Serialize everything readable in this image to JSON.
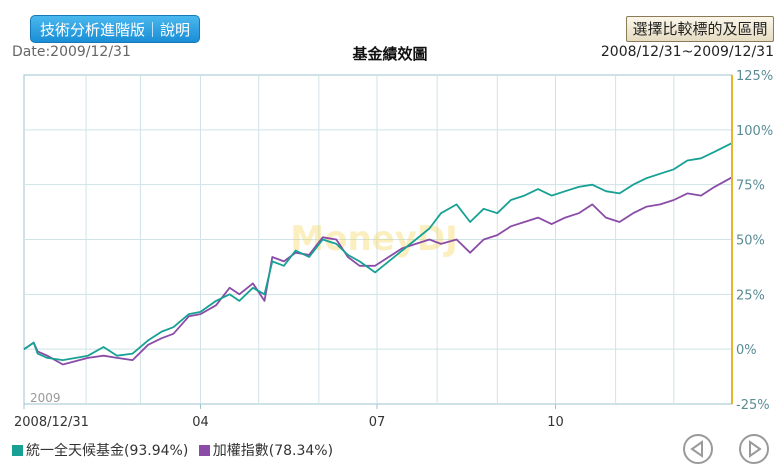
{
  "header": {
    "tech_button": "技術分析進階版｜說明",
    "compare_button": "選擇比較標的及區間",
    "date_label": "Date:2009/12/31",
    "title": "基金績效圖",
    "range": "2008/12/31~2009/12/31"
  },
  "watermark": "MoneyDJ",
  "year_label": "2009",
  "legend": [
    {
      "label": "統一全天候基金(93.94%)",
      "color": "#17a194"
    },
    {
      "label": "加權指數(78.34%)",
      "color": "#8a4ca6"
    }
  ],
  "nav": {
    "prev_icon": "prev-circle-icon",
    "next_icon": "next-circle-icon"
  },
  "chart_data": {
    "type": "line",
    "title": "基金績效圖",
    "x_tick_labels": [
      "2008/12/31",
      "04",
      "07",
      "10"
    ],
    "y_tick_labels": [
      "125%",
      "100%",
      "75%",
      "50%",
      "25%",
      "0%",
      "-25%"
    ],
    "y_axis_side": "right",
    "ylim": [
      -25,
      125
    ],
    "x_domain": [
      "2008-12-31",
      "2009-12-31"
    ],
    "grid": true,
    "legend_position": "bottom-left",
    "series": [
      {
        "name": "統一全天候基金(93.94%)",
        "color": "#17a194",
        "points": [
          [
            "2008-12-31",
            0
          ],
          [
            "2009-01-05",
            3
          ],
          [
            "2009-01-07",
            -2
          ],
          [
            "2009-01-12",
            -4
          ],
          [
            "2009-01-20",
            -5
          ],
          [
            "2009-02-02",
            -3
          ],
          [
            "2009-02-10",
            1
          ],
          [
            "2009-02-17",
            -3
          ],
          [
            "2009-02-25",
            -2
          ],
          [
            "2009-03-05",
            4
          ],
          [
            "2009-03-12",
            8
          ],
          [
            "2009-03-18",
            10
          ],
          [
            "2009-03-26",
            16
          ],
          [
            "2009-04-01",
            17
          ],
          [
            "2009-04-09",
            22
          ],
          [
            "2009-04-16",
            25
          ],
          [
            "2009-04-21",
            22
          ],
          [
            "2009-04-28",
            28
          ],
          [
            "2009-05-04",
            25
          ],
          [
            "2009-05-08",
            40
          ],
          [
            "2009-05-14",
            38
          ],
          [
            "2009-05-20",
            45
          ],
          [
            "2009-05-27",
            42
          ],
          [
            "2009-06-03",
            50
          ],
          [
            "2009-06-10",
            48
          ],
          [
            "2009-06-16",
            43
          ],
          [
            "2009-06-22",
            40
          ],
          [
            "2009-06-30",
            35
          ],
          [
            "2009-07-07",
            40
          ],
          [
            "2009-07-14",
            45
          ],
          [
            "2009-07-21",
            50
          ],
          [
            "2009-07-28",
            55
          ],
          [
            "2009-08-03",
            62
          ],
          [
            "2009-08-11",
            66
          ],
          [
            "2009-08-18",
            58
          ],
          [
            "2009-08-25",
            64
          ],
          [
            "2009-09-01",
            62
          ],
          [
            "2009-09-08",
            68
          ],
          [
            "2009-09-15",
            70
          ],
          [
            "2009-09-22",
            73
          ],
          [
            "2009-09-29",
            70
          ],
          [
            "2009-10-06",
            72
          ],
          [
            "2009-10-13",
            74
          ],
          [
            "2009-10-20",
            75
          ],
          [
            "2009-10-27",
            72
          ],
          [
            "2009-11-03",
            71
          ],
          [
            "2009-11-10",
            75
          ],
          [
            "2009-11-17",
            78
          ],
          [
            "2009-11-24",
            80
          ],
          [
            "2009-12-01",
            82
          ],
          [
            "2009-12-08",
            86
          ],
          [
            "2009-12-15",
            87
          ],
          [
            "2009-12-22",
            90
          ],
          [
            "2009-12-31",
            93.94
          ]
        ]
      },
      {
        "name": "加權指數(78.34%)",
        "color": "#8a4ca6",
        "points": [
          [
            "2008-12-31",
            0
          ],
          [
            "2009-01-05",
            3
          ],
          [
            "2009-01-07",
            -1
          ],
          [
            "2009-01-12",
            -3
          ],
          [
            "2009-01-20",
            -7
          ],
          [
            "2009-02-02",
            -4
          ],
          [
            "2009-02-10",
            -3
          ],
          [
            "2009-02-17",
            -4
          ],
          [
            "2009-02-25",
            -5
          ],
          [
            "2009-03-05",
            2
          ],
          [
            "2009-03-12",
            5
          ],
          [
            "2009-03-18",
            7
          ],
          [
            "2009-03-26",
            15
          ],
          [
            "2009-04-01",
            16
          ],
          [
            "2009-04-09",
            20
          ],
          [
            "2009-04-16",
            28
          ],
          [
            "2009-04-21",
            25
          ],
          [
            "2009-04-28",
            30
          ],
          [
            "2009-05-04",
            22
          ],
          [
            "2009-05-08",
            42
          ],
          [
            "2009-05-14",
            40
          ],
          [
            "2009-05-20",
            44
          ],
          [
            "2009-05-27",
            43
          ],
          [
            "2009-06-03",
            51
          ],
          [
            "2009-06-10",
            50
          ],
          [
            "2009-06-16",
            42
          ],
          [
            "2009-06-22",
            38
          ],
          [
            "2009-06-30",
            38
          ],
          [
            "2009-07-07",
            42
          ],
          [
            "2009-07-14",
            46
          ],
          [
            "2009-07-21",
            48
          ],
          [
            "2009-07-28",
            50
          ],
          [
            "2009-08-03",
            48
          ],
          [
            "2009-08-11",
            50
          ],
          [
            "2009-08-18",
            44
          ],
          [
            "2009-08-25",
            50
          ],
          [
            "2009-09-01",
            52
          ],
          [
            "2009-09-08",
            56
          ],
          [
            "2009-09-15",
            58
          ],
          [
            "2009-09-22",
            60
          ],
          [
            "2009-09-29",
            57
          ],
          [
            "2009-10-06",
            60
          ],
          [
            "2009-10-13",
            62
          ],
          [
            "2009-10-20",
            66
          ],
          [
            "2009-10-27",
            60
          ],
          [
            "2009-11-03",
            58
          ],
          [
            "2009-11-10",
            62
          ],
          [
            "2009-11-17",
            65
          ],
          [
            "2009-11-24",
            66
          ],
          [
            "2009-12-01",
            68
          ],
          [
            "2009-12-08",
            71
          ],
          [
            "2009-12-15",
            70
          ],
          [
            "2009-12-22",
            74
          ],
          [
            "2009-12-31",
            78.34
          ]
        ]
      }
    ]
  }
}
